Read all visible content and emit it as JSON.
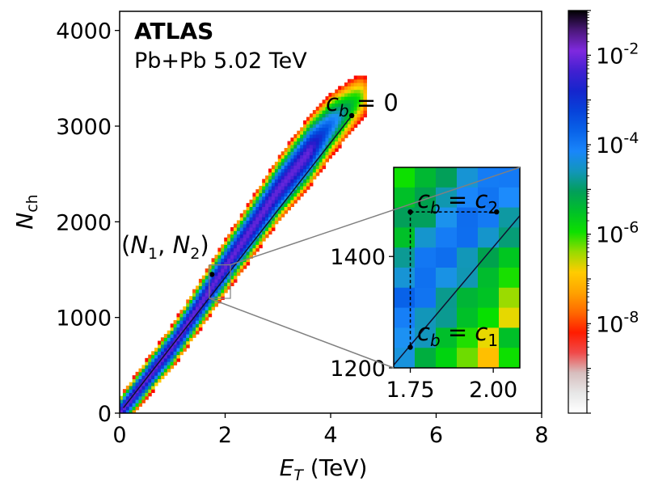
{
  "chart_data": {
    "type": "heatmap",
    "experiment": "ATLAS",
    "system": "Pb+Pb 5.02 TeV",
    "xlabel": {
      "main": "E",
      "sub": "T",
      "unit": " (TeV)"
    },
    "ylabel": {
      "main": "N",
      "sub": "ch"
    },
    "xlim": [
      0,
      8
    ],
    "ylim": [
      0,
      4200
    ],
    "xticks": [
      0,
      2,
      4,
      6,
      8
    ],
    "yticks": [
      0,
      1000,
      2000,
      3000,
      4000
    ],
    "ridge": {
      "description": "correlation band of events",
      "points": [
        [
          0,
          0
        ],
        [
          1,
          700
        ],
        [
          2,
          1530
        ],
        [
          3,
          2330
        ],
        [
          4,
          3010
        ],
        [
          4.5,
          3270
        ],
        [
          4.9,
          3400
        ]
      ]
    },
    "centrality_line": {
      "from": [
        0.07,
        55
      ],
      "to": [
        4.4,
        3110
      ],
      "label": "c_b = 0"
    },
    "marked_point": {
      "x": 1.75,
      "y": 1450,
      "label": "(N_1, N_2)"
    },
    "zoom_box": {
      "x": [
        1.7,
        2.1
      ],
      "y": [
        1200,
        1550
      ]
    },
    "inset": {
      "xlim": [
        1.7,
        2.08
      ],
      "ylim": [
        1200,
        1560
      ],
      "xticks": [
        "1.75",
        "2.00"
      ],
      "xtick_values": [
        1.75,
        2.0
      ],
      "yticks": [
        "1200",
        "1400"
      ],
      "ytick_values": [
        1200,
        1400
      ],
      "label_c2": "c_b = c_2",
      "label_c1": "c_b = c_1",
      "point_c2": {
        "x": 2.01,
        "y": 1480
      },
      "point_c1": {
        "x": 1.75,
        "y": 1237
      },
      "corner": {
        "x": 1.75,
        "y": 1480
      }
    },
    "colorbar": {
      "scale": "log",
      "range_exponent": [
        -10,
        -1
      ],
      "ticks": [
        "10^-2",
        "10^-4",
        "10^-6",
        "10^-8"
      ],
      "tick_exponents": [
        -2,
        -4,
        -6,
        -8
      ],
      "colors": [
        "#ffffff",
        "#d3d3d3",
        "#ff0000",
        "#ff8c00",
        "#ffd700",
        "#00e000",
        "#00a050",
        "#1e90ff",
        "#0050e0",
        "#1a1ac8",
        "#8a2be2",
        "#000000"
      ]
    }
  }
}
